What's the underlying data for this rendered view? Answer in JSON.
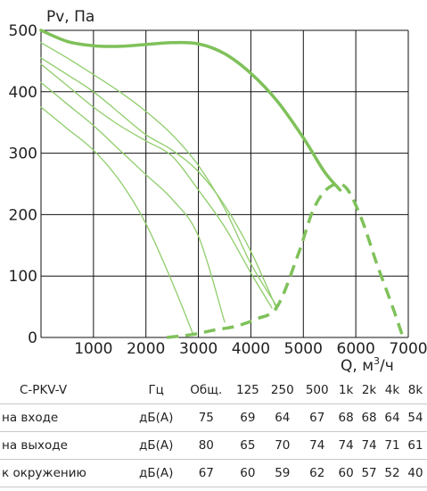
{
  "chart_data": {
    "type": "line",
    "ylabel": "Pv, Па",
    "xlabel_prefix": "Q, м",
    "xlabel_sup": "3",
    "xlabel_suffix": "/ч",
    "xlim": [
      0,
      7000
    ],
    "ylim": [
      0,
      500
    ],
    "xticks": [
      "1000",
      "2000",
      "3000",
      "4000",
      "5000",
      "6000",
      "7000"
    ],
    "yticks": [
      "0",
      "100",
      "200",
      "300",
      "400",
      "500"
    ],
    "grid": true,
    "colors": {
      "main": "#7fc15a",
      "secondary": "#8fcd6a"
    },
    "series": [
      {
        "role": "max",
        "style": "solid-thick",
        "x": [
          0,
          500,
          1000,
          1500,
          2000,
          2500,
          3000,
          3500,
          4000,
          4500,
          5000,
          5400,
          5700
        ],
        "y": [
          500,
          482,
          475,
          474,
          477,
          480,
          478,
          462,
          430,
          385,
          325,
          270,
          240
        ]
      },
      {
        "role": "speed",
        "style": "solid-thin",
        "x": [
          0,
          500,
          1000,
          1500,
          2000,
          2500,
          3000,
          3500,
          4000,
          4500
        ],
        "y": [
          480,
          455,
          428,
          400,
          368,
          330,
          280,
          210,
          120,
          50
        ]
      },
      {
        "role": "speed",
        "style": "solid-thin",
        "x": [
          0,
          500,
          1000,
          1500,
          2000,
          2500,
          3000,
          3500,
          4000,
          4500
        ],
        "y": [
          455,
          428,
          400,
          365,
          330,
          305,
          270,
          215,
          140,
          45
        ]
      },
      {
        "role": "speed",
        "style": "solid-thin",
        "x": [
          0,
          500,
          1000,
          1500,
          2000,
          2500,
          3000,
          3500,
          4000,
          4400
        ],
        "y": [
          445,
          410,
          375,
          345,
          320,
          295,
          240,
          180,
          105,
          48
        ]
      },
      {
        "role": "speed",
        "style": "solid-thin",
        "x": [
          0,
          500,
          1000,
          1500,
          2000,
          2500,
          3000,
          3500
        ],
        "y": [
          415,
          380,
          345,
          305,
          265,
          225,
          165,
          25
        ]
      },
      {
        "role": "speed",
        "style": "solid-thin",
        "x": [
          0,
          500,
          1000,
          1500,
          2000,
          2500,
          2900
        ],
        "y": [
          375,
          340,
          305,
          255,
          185,
          90,
          5
        ]
      },
      {
        "role": "limit",
        "style": "dashed",
        "x": [
          2400,
          2900,
          3300,
          3700,
          4100,
          4500,
          4900,
          5200,
          5500,
          5800,
          6100,
          6400,
          6700,
          6900
        ],
        "y": [
          0,
          5,
          12,
          18,
          30,
          50,
          135,
          210,
          245,
          245,
          195,
          120,
          50,
          0
        ]
      }
    ]
  },
  "noise_table": {
    "model": "C-PKV-V",
    "unit_header": "Гц",
    "total_header": "Общ.",
    "bands": [
      "125",
      "250",
      "500",
      "1k",
      "2k",
      "4k",
      "8k"
    ],
    "rows": [
      {
        "label": "на входе",
        "unit": "дБ(А)",
        "total": "75",
        "values": [
          "69",
          "64",
          "67",
          "68",
          "68",
          "64",
          "54"
        ]
      },
      {
        "label": "на выходе",
        "unit": "дБ(А)",
        "total": "80",
        "values": [
          "65",
          "70",
          "74",
          "74",
          "74",
          "71",
          "61"
        ]
      },
      {
        "label": "к окружению",
        "unit": "дБ(А)",
        "total": "67",
        "values": [
          "60",
          "59",
          "62",
          "60",
          "57",
          "52",
          "40"
        ]
      }
    ]
  }
}
